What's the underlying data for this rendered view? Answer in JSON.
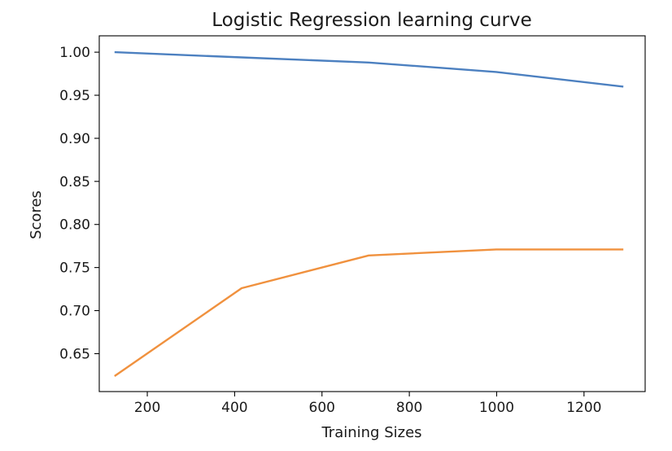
{
  "chart_data": {
    "type": "line",
    "title": "Logistic Regression learning curve",
    "xlabel": "Training Sizes",
    "ylabel": "Scores",
    "xlim": [
      90,
      1340
    ],
    "ylim": [
      0.606,
      1.019
    ],
    "xticks": [
      200,
      400,
      600,
      800,
      1000,
      1200
    ],
    "yticks": [
      0.65,
      0.7,
      0.75,
      0.8,
      0.85,
      0.9,
      0.95,
      1.0
    ],
    "ytick_labels": [
      "0.65",
      "0.70",
      "0.75",
      "0.80",
      "0.85",
      "0.90",
      "0.95",
      "1.00"
    ],
    "grid": false,
    "legend": "none",
    "x": [
      125,
      416,
      707,
      999,
      1290
    ],
    "series": [
      {
        "values": [
          1.0,
          0.994,
          0.988,
          0.977,
          0.96
        ],
        "color": "#4c80c0"
      },
      {
        "values": [
          0.624,
          0.726,
          0.764,
          0.771,
          0.771
        ],
        "color": "#f0913e"
      }
    ]
  }
}
